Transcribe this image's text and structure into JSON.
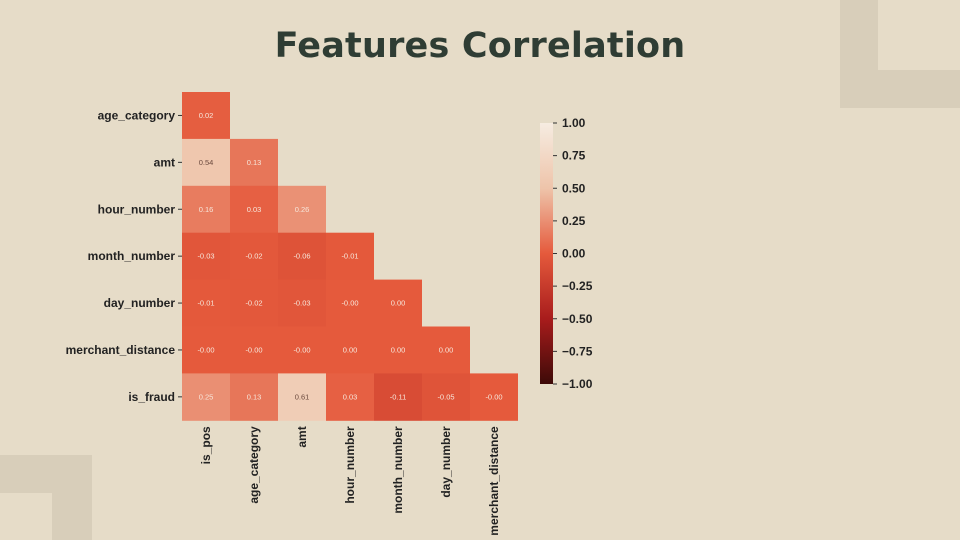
{
  "slide": {
    "title": "Features Correlation"
  },
  "chart_data": {
    "type": "heatmap",
    "title": "Features Correlation",
    "row_labels": [
      "age_category",
      "amt",
      "hour_number",
      "month_number",
      "day_number",
      "merchant_distance",
      "is_fraud"
    ],
    "col_labels": [
      "is_pos",
      "age_category",
      "amt",
      "hour_number",
      "month_number",
      "day_number",
      "merchant_distance"
    ],
    "values": [
      [
        "0.02"
      ],
      [
        "0.54",
        "0.13"
      ],
      [
        "0.16",
        "0.03",
        "0.26"
      ],
      [
        "-0.03",
        "-0.02",
        "-0.06",
        "-0.01"
      ],
      [
        "-0.01",
        "-0.02",
        "-0.03",
        "-0.00",
        "0.00"
      ],
      [
        "-0.00",
        "-0.00",
        "-0.00",
        "0.00",
        "0.00",
        "0.00"
      ],
      [
        "0.25",
        "0.13",
        "0.61",
        "0.03",
        "-0.11",
        "-0.05",
        "-0.00"
      ]
    ],
    "mask": "lower-triangle",
    "vmin": -1.0,
    "vmax": 1.0,
    "colorbar_ticks": [
      "1.00",
      "0.75",
      "0.50",
      "0.25",
      "0.00",
      "−0.25",
      "−0.50",
      "−0.75",
      "−1.00"
    ],
    "colormap": [
      "#3d0a08",
      "#a81c1c",
      "#e55a3c",
      "#eec4aa",
      "#f6ece1"
    ]
  }
}
